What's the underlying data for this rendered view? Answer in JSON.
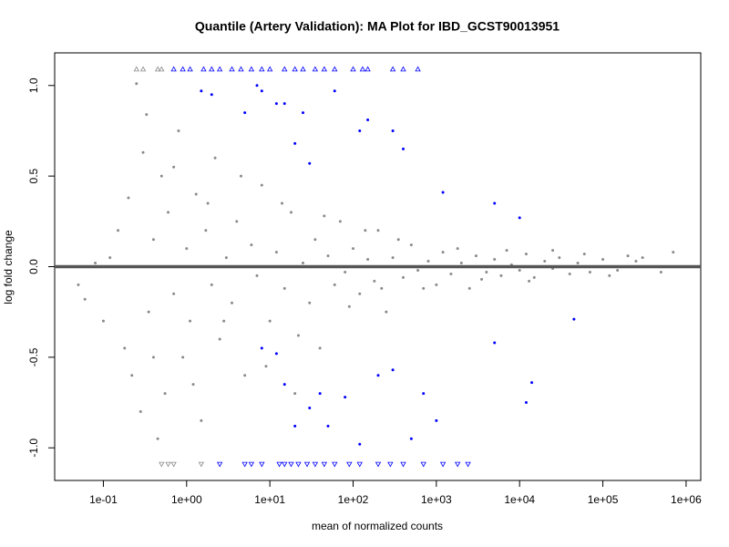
{
  "chart_data": {
    "type": "scatter",
    "title": "Quantile (Artery Validation): MA Plot for IBD_GCST90013951",
    "x_label": "mean of normalized counts",
    "y_label": "log fold change",
    "x_scale": "log",
    "xlim": [
      0.026,
      1500000
    ],
    "ylim": [
      -1.18,
      1.18
    ],
    "xticks": [
      {
        "value": 0.1,
        "label": "1e-01"
      },
      {
        "value": 1,
        "label": "1e+00"
      },
      {
        "value": 10,
        "label": "1e+01"
      },
      {
        "value": 100,
        "label": "1e+02"
      },
      {
        "value": 1000,
        "label": "1e+03"
      },
      {
        "value": 10000,
        "label": "1e+04"
      },
      {
        "value": 100000,
        "label": "1e+05"
      },
      {
        "value": 1000000,
        "label": "1e+06"
      }
    ],
    "yticks": [
      {
        "value": -1,
        "label": "-1.0"
      },
      -0.5,
      {
        "value": 0,
        "label": "0.0"
      },
      0.5,
      {
        "value": 1,
        "label": "1.0"
      }
    ],
    "hline": 0,
    "hline_color": "#555555",
    "grid": false,
    "series": [
      {
        "color": "#8a8a8a",
        "marker": "circle",
        "x": [
          0.05,
          0.06,
          0.08,
          0.1,
          0.12,
          0.15,
          0.18,
          0.2,
          0.22,
          0.25,
          0.28,
          0.3,
          0.33,
          0.35,
          0.4,
          0.45,
          0.5,
          0.55,
          0.6,
          0.7,
          0.8,
          0.9,
          1.0,
          1.1,
          1.3,
          1.5,
          1.7,
          2.0,
          2.2,
          2.5,
          3,
          3.5,
          4,
          5,
          6,
          7,
          8,
          10,
          12,
          15,
          18,
          20,
          25,
          30,
          35,
          40,
          50,
          60,
          70,
          80,
          100,
          120,
          150,
          180,
          200,
          250,
          300,
          400,
          500,
          600,
          800,
          1000,
          1200,
          1500,
          2000,
          2500,
          3000,
          4000,
          5000,
          6000,
          8000,
          10000,
          12000,
          15000,
          20000,
          25000,
          30000,
          40000,
          50000,
          70000,
          100000,
          150000,
          200000,
          300000,
          500000,
          700000,
          0.4,
          0.7,
          1.2,
          1.8,
          2.8,
          4.5,
          9,
          14,
          22,
          45,
          90,
          140,
          220,
          350,
          700,
          1800,
          3500,
          7000,
          13000,
          25000,
          60000,
          120000,
          250000
        ],
        "values": [
          -0.1,
          -0.18,
          0.02,
          -0.3,
          0.05,
          0.2,
          -0.45,
          0.38,
          -0.6,
          1.01,
          -0.8,
          0.63,
          0.84,
          -0.25,
          0.15,
          -0.95,
          0.5,
          -0.7,
          0.3,
          -0.15,
          0.75,
          -0.5,
          0.1,
          -0.3,
          0.4,
          -0.85,
          0.2,
          -0.1,
          0.6,
          -0.4,
          0.05,
          -0.2,
          0.25,
          -0.6,
          0.12,
          -0.05,
          0.45,
          -0.3,
          0.08,
          -0.12,
          0.3,
          -0.7,
          0.02,
          -0.2,
          0.15,
          -0.45,
          0.06,
          -0.1,
          0.25,
          -0.03,
          0.1,
          -0.15,
          0.04,
          -0.08,
          0.2,
          -0.25,
          0.05,
          -0.06,
          0.12,
          -0.02,
          0.03,
          -0.1,
          0.08,
          -0.04,
          0.02,
          -0.12,
          0.06,
          -0.03,
          0.04,
          -0.05,
          0.01,
          -0.02,
          0.07,
          -0.06,
          0.03,
          -0.01,
          0.05,
          -0.04,
          0.02,
          -0.03,
          0.04,
          -0.02,
          0.06,
          0.05,
          -0.03,
          0.08,
          -0.5,
          0.55,
          -0.65,
          0.35,
          -0.3,
          0.5,
          -0.55,
          0.35,
          -0.38,
          0.28,
          -0.22,
          0.2,
          -0.12,
          0.15,
          -0.12,
          0.1,
          -0.07,
          0.09,
          -0.08,
          0.09,
          0.07,
          -0.05,
          0.03
        ]
      },
      {
        "color": "#0000ff",
        "marker": "circle",
        "x": [
          1.5,
          2,
          5,
          7,
          8,
          12,
          15,
          20,
          25,
          30,
          60,
          120,
          150,
          300,
          400,
          1200,
          5000,
          10000,
          8,
          12,
          15,
          20,
          30,
          40,
          50,
          80,
          120,
          200,
          300,
          500,
          700,
          1000,
          5000,
          12000,
          14000,
          45000
        ],
        "values": [
          0.97,
          0.95,
          0.85,
          1.0,
          0.97,
          0.9,
          0.9,
          0.68,
          0.85,
          0.57,
          0.97,
          0.75,
          0.81,
          0.75,
          0.65,
          0.41,
          0.35,
          0.27,
          -0.45,
          -0.48,
          -0.65,
          -0.88,
          -0.78,
          -0.7,
          -0.88,
          -0.72,
          -0.98,
          -0.6,
          -0.57,
          -0.95,
          -0.7,
          -0.85,
          -0.42,
          -0.75,
          -0.64,
          -0.29
        ]
      },
      {
        "color": "#8a8a8a",
        "marker": "triangle-up",
        "x": [
          0.25,
          0.3,
          0.45,
          0.5
        ],
        "values": [
          1.09,
          1.09,
          1.09,
          1.09
        ]
      },
      {
        "color": "#0000ff",
        "marker": "triangle-up",
        "x": [
          0.7,
          0.9,
          1.1,
          1.6,
          2,
          2.5,
          3.5,
          4.5,
          6,
          8,
          10,
          15,
          20,
          25,
          35,
          45,
          60,
          100,
          130,
          150,
          300,
          400,
          600
        ],
        "values": [
          1.09,
          1.09,
          1.09,
          1.09,
          1.09,
          1.09,
          1.09,
          1.09,
          1.09,
          1.09,
          1.09,
          1.09,
          1.09,
          1.09,
          1.09,
          1.09,
          1.09,
          1.09,
          1.09,
          1.09,
          1.09,
          1.09,
          1.09
        ]
      },
      {
        "color": "#8a8a8a",
        "marker": "triangle-down",
        "x": [
          0.5,
          0.6,
          0.7,
          1.5
        ],
        "values": [
          -1.09,
          -1.09,
          -1.09,
          -1.09
        ]
      },
      {
        "color": "#0000ff",
        "marker": "triangle-down",
        "x": [
          2.5,
          5,
          6,
          8,
          13,
          15,
          18,
          22,
          28,
          35,
          45,
          60,
          90,
          120,
          200,
          280,
          400,
          700,
          1200,
          1800,
          2400
        ],
        "values": [
          -1.09,
          -1.09,
          -1.09,
          -1.09,
          -1.09,
          -1.09,
          -1.09,
          -1.09,
          -1.09,
          -1.09,
          -1.09,
          -1.09,
          -1.09,
          -1.09,
          -1.09,
          -1.09,
          -1.09,
          -1.09,
          -1.09,
          -1.09,
          -1.09
        ]
      }
    ]
  }
}
